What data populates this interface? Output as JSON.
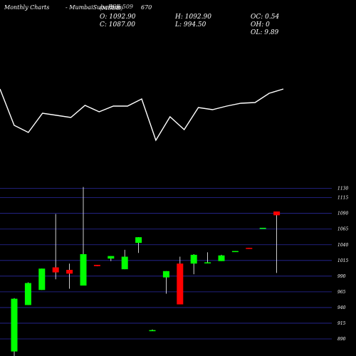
{
  "header": {
    "title": "Monthly Charts",
    "symbol": "  -  MumbaiSuburban",
    "overlay": "(MSUB)",
    "code": "BSE 509",
    "extra": "670"
  },
  "ohlc": {
    "o": "O: 1092.90",
    "h": "H: 1092.90",
    "oc": "OC: 0.54",
    "c": "C: 1087.00",
    "l": "L: 994.50",
    "oh": "OH: 0",
    "ol": "OL: 9.89"
  },
  "colors": {
    "up": "#00ff00",
    "down": "#ff0000",
    "grid": "#2a2aa0",
    "line": "#ffffff"
  },
  "chart_data": {
    "type": "candlestick",
    "yticks": [
      890,
      915,
      940,
      965,
      990,
      1015,
      1040,
      1065,
      1090,
      1115,
      1130
    ],
    "ylim": [
      885,
      1132
    ],
    "candles": [
      {
        "o": 870,
        "h": 955,
        "l": 855,
        "c": 954
      },
      {
        "o": 944,
        "h": 980,
        "l": 944,
        "c": 979
      },
      {
        "o": 968,
        "h": 1002,
        "l": 968,
        "c": 1002
      },
      {
        "o": 1004,
        "h": 1089,
        "l": 985,
        "c": 996
      },
      {
        "o": 1000,
        "h": 1010,
        "l": 970,
        "c": 994
      },
      {
        "o": 975,
        "h": 1132,
        "l": 975,
        "c": 1025
      },
      {
        "o": 1008,
        "h": 1008,
        "l": 1006,
        "c": 1006
      },
      {
        "o": 1018,
        "h": 1022,
        "l": 1014,
        "c": 1022
      },
      {
        "o": 1001,
        "h": 1032,
        "l": 1001,
        "c": 1021
      },
      {
        "o": 1043,
        "h": 1052,
        "l": 1027,
        "c": 1052
      },
      {
        "o": 904,
        "h": 905,
        "l": 903,
        "c": 904
      },
      {
        "o": 988,
        "h": 998,
        "l": 962,
        "c": 998
      },
      {
        "o": 1010,
        "h": 1021,
        "l": 945,
        "c": 945
      },
      {
        "o": 1010,
        "h": 1025,
        "l": 993,
        "c": 1024
      },
      {
        "o": 1012,
        "h": 1028,
        "l": 1012,
        "c": 1012
      },
      {
        "o": 1014,
        "h": 1024,
        "l": 1014,
        "c": 1023
      },
      {
        "o": 1029,
        "h": 1030,
        "l": 1029,
        "c": 1030
      },
      {
        "o": 1035,
        "h": 1035,
        "l": 1034,
        "c": 1034
      },
      {
        "o": 1066,
        "h": 1067,
        "l": 1066,
        "c": 1067
      },
      {
        "o": 1093,
        "h": 1093,
        "l": 995,
        "c": 1087
      }
    ],
    "line_values": [
      125,
      176,
      186,
      159,
      162,
      165,
      148,
      157,
      149,
      149,
      139,
      197,
      164,
      182,
      151,
      154,
      149,
      145,
      144,
      131,
      125
    ]
  }
}
